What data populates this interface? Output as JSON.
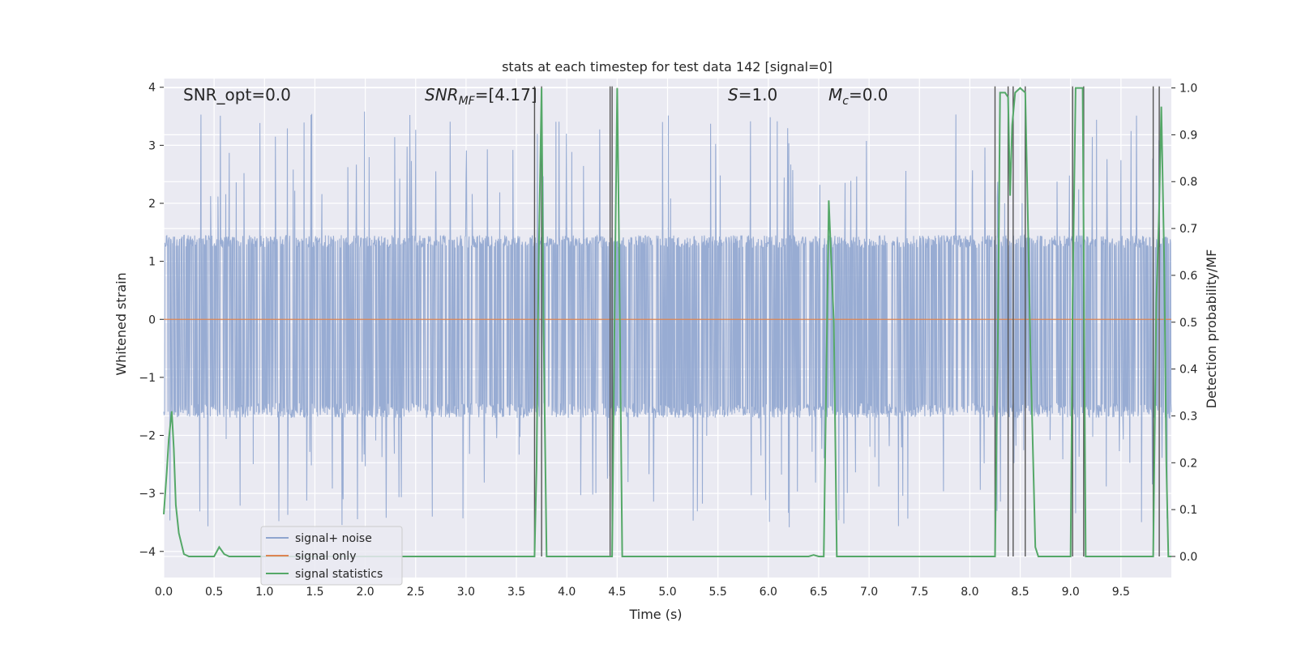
{
  "chart_data": {
    "type": "line",
    "title": "stats at each timestep for test data 142 [signal=0]",
    "xlabel": "Time (s)",
    "ylabel_left": "Whitened strain",
    "ylabel_right": "Detection probability/MF",
    "xlim": [
      0.0,
      10.0
    ],
    "ylim_left": [
      -4.45,
      4.15
    ],
    "ylim_right": [
      -0.045,
      1.02
    ],
    "grid": true,
    "legend_placement": "lower-left",
    "x_ticks": [
      "0.0",
      "0.5",
      "1.0",
      "1.5",
      "2.0",
      "2.5",
      "3.0",
      "3.5",
      "4.0",
      "4.5",
      "5.0",
      "5.5",
      "6.0",
      "6.5",
      "7.0",
      "7.5",
      "8.0",
      "8.5",
      "9.0",
      "9.5"
    ],
    "x_tick_values": [
      0.0,
      0.5,
      1.0,
      1.5,
      2.0,
      2.5,
      3.0,
      3.5,
      4.0,
      4.5,
      5.0,
      5.5,
      6.0,
      6.5,
      7.0,
      7.5,
      8.0,
      8.5,
      9.0,
      9.5
    ],
    "y_ticks_left": [
      "4",
      "3",
      "2",
      "1",
      "0",
      "−1",
      "−2",
      "−3",
      "−4"
    ],
    "y_tick_values_left": [
      4,
      3,
      2,
      1,
      0,
      -1,
      -2,
      -3,
      -4
    ],
    "y_ticks_right": [
      "1.0",
      "0.9",
      "0.8",
      "0.7",
      "0.6",
      "0.5",
      "0.4",
      "0.3",
      "0.2",
      "0.1",
      "0.0"
    ],
    "y_tick_values_right": [
      1.0,
      0.9,
      0.8,
      0.7,
      0.6,
      0.5,
      0.4,
      0.3,
      0.2,
      0.1,
      0.0
    ],
    "annotations": {
      "snr_opt": "SNR_opt=0.0",
      "snr_mf_main": "SNR",
      "snr_mf_sub": "MF",
      "snr_mf_value": "=[4.17]",
      "s_main": "S",
      "s_value": "=1.0",
      "mc_main": "M",
      "mc_sub": "c",
      "mc_value": "=0.0"
    },
    "series": [
      {
        "name": "signal+ noise",
        "color": "#8fa5cf",
        "axis": "left",
        "description_values": {
          "typical_band": [
            -1.7,
            1.45
          ],
          "peak_max": 3.85,
          "peak_min": -3.6
        }
      },
      {
        "name": "signal only",
        "color": "#dd8452",
        "axis": "left",
        "values_constant": 0.0
      },
      {
        "name": "signal statistics",
        "color": "#55a868",
        "axis": "right",
        "x": [
          0.0,
          0.03,
          0.05,
          0.08,
          0.1,
          0.12,
          0.15,
          0.2,
          0.25,
          0.3,
          0.4,
          0.5,
          0.55,
          0.6,
          0.65,
          0.7,
          3.65,
          3.68,
          3.7,
          3.72,
          3.75,
          3.77,
          3.8,
          4.43,
          4.45,
          4.48,
          4.5,
          4.52,
          4.55,
          6.4,
          6.45,
          6.5,
          6.55,
          6.6,
          6.65,
          6.68,
          8.25,
          8.28,
          8.3,
          8.35,
          8.38,
          8.4,
          8.42,
          8.45,
          8.5,
          8.55,
          8.58,
          8.6,
          8.65,
          8.68,
          9.0,
          9.02,
          9.05,
          9.08,
          9.12,
          9.15,
          9.82,
          9.85,
          9.88,
          9.9,
          9.93,
          9.95,
          9.97,
          10.0
        ],
        "y": [
          0.09,
          0.18,
          0.25,
          0.31,
          0.23,
          0.11,
          0.05,
          0.005,
          0.0,
          0.0,
          0.0,
          0.0,
          0.02,
          0.005,
          0.0,
          0.0,
          0.0,
          0.0,
          0.19,
          0.62,
          1.0,
          0.48,
          0.0,
          0.0,
          0.0,
          0.63,
          1.0,
          0.65,
          0.0,
          0.0,
          0.003,
          0.0,
          0.0,
          0.76,
          0.5,
          0.0,
          0.0,
          0.5,
          0.99,
          0.99,
          0.98,
          0.77,
          0.92,
          0.99,
          1.0,
          0.99,
          0.68,
          0.45,
          0.02,
          0.0,
          0.0,
          0.55,
          1.0,
          1.0,
          1.0,
          0.0,
          0.0,
          0.54,
          0.75,
          0.96,
          0.62,
          0.2,
          0.0,
          0.0
        ]
      }
    ],
    "vertical_markers_x": [
      3.68,
      3.75,
      4.43,
      4.45,
      8.25,
      8.38,
      8.43,
      8.55,
      9.02,
      9.13,
      9.82,
      9.88
    ]
  },
  "legend": {
    "item1": "signal+ noise",
    "item2": "signal only",
    "item3": "signal statistics"
  }
}
